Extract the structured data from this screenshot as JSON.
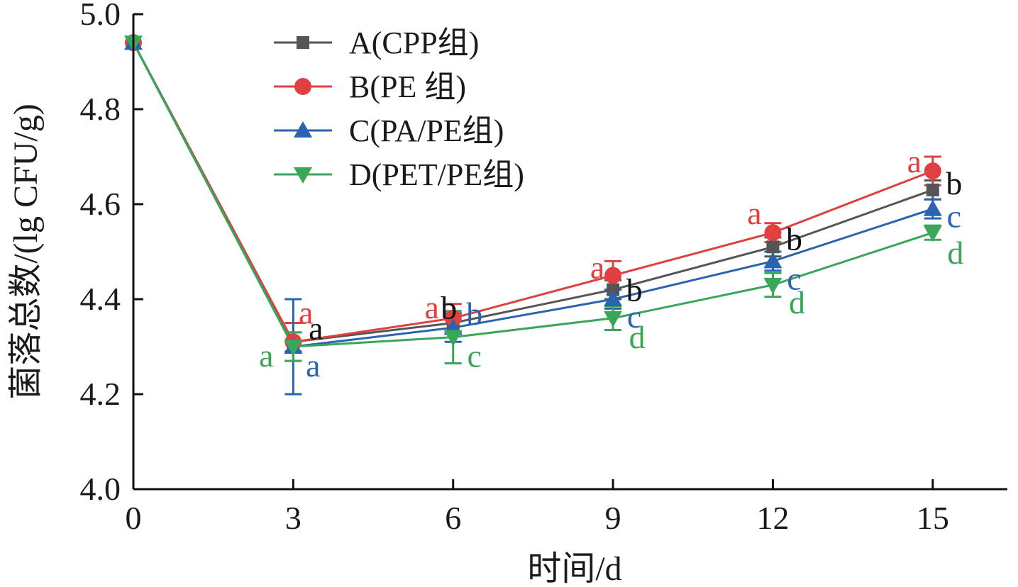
{
  "chart_data": {
    "type": "line",
    "xlabel": "时间/d",
    "ylabel": "菌落总数/(lg CFU/g)",
    "x": [
      0,
      3,
      6,
      9,
      12,
      15
    ],
    "x_ticks": [
      "0",
      "3",
      "6",
      "9",
      "12",
      "15"
    ],
    "y_ticks": [
      "4.0",
      "4.2",
      "4.4",
      "4.6",
      "4.8",
      "5.0"
    ],
    "xlim": [
      0,
      16.4
    ],
    "ylim": [
      4.0,
      5.0
    ],
    "grid": false,
    "legend_position": "top-left",
    "series": [
      {
        "name": "A(CPP组)",
        "color": "#555555",
        "marker": "square",
        "values": [
          4.94,
          4.31,
          4.35,
          4.42,
          4.51,
          4.63
        ],
        "errors": [
          0.0,
          0.02,
          0.02,
          0.02,
          0.02,
          0.02
        ],
        "labels": [
          "",
          "a",
          "b",
          "b",
          "b",
          "b"
        ]
      },
      {
        "name": "B(PE 组)",
        "color": "#e04040",
        "marker": "circle",
        "values": [
          4.94,
          4.31,
          4.36,
          4.45,
          4.54,
          4.67
        ],
        "errors": [
          0.0,
          0.04,
          0.03,
          0.03,
          0.02,
          0.03
        ],
        "labels": [
          "",
          "a",
          "a",
          "a",
          "a",
          "a"
        ]
      },
      {
        "name": "C(PA/PE组)",
        "color": "#2a64b0",
        "marker": "triangle-up",
        "values": [
          4.94,
          4.3,
          4.34,
          4.4,
          4.48,
          4.59
        ],
        "errors": [
          0.0,
          0.1,
          0.03,
          0.02,
          0.02,
          0.02
        ],
        "labels": [
          "",
          "a",
          "b",
          "c",
          "c",
          "c"
        ]
      },
      {
        "name": "D(PET/PE组)",
        "color": "#3aa65a",
        "marker": "triangle-down",
        "values": [
          4.94,
          4.3,
          4.32,
          4.36,
          4.43,
          4.54
        ],
        "errors": [
          0.0,
          0.03,
          0.055,
          0.025,
          0.025,
          0.015
        ],
        "labels": [
          "",
          "a",
          "c",
          "d",
          "d",
          "d"
        ]
      }
    ]
  }
}
